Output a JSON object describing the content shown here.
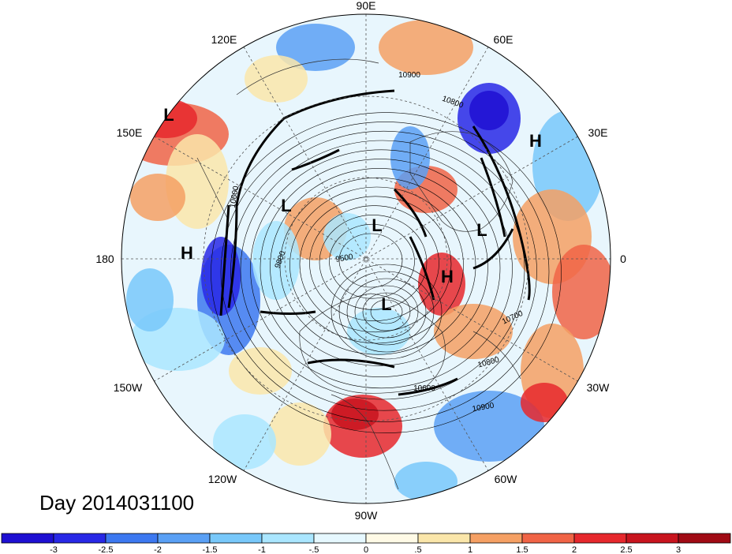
{
  "map": {
    "day_label": "Day 2014031100",
    "longitude_labels": [
      "90E",
      "60E",
      "30E",
      "0",
      "30W",
      "60W",
      "90W",
      "120W",
      "150W",
      "180",
      "150E",
      "120E"
    ],
    "pressure_centers": [
      "L",
      "H",
      "L",
      "L",
      "L",
      "L",
      "H",
      "H"
    ],
    "contour_labels": [
      "10900",
      "10800",
      "10700",
      "10800",
      "10600",
      "10900",
      "9800",
      "9500",
      "10600"
    ]
  },
  "colorbar": {
    "ticks": [
      "-3",
      "-2.5",
      "-2",
      "-1.5",
      "-1",
      "-.5",
      "0",
      ".5",
      "1",
      "1.5",
      "2",
      "2.5",
      "3"
    ],
    "colors": [
      "#1e0fd2",
      "#2828e6",
      "#3c78f0",
      "#5aa0f5",
      "#78c8fa",
      "#aae6ff",
      "#e6f8ff",
      "#fffae6",
      "#fae6aa",
      "#f5a064",
      "#f06446",
      "#e6282d",
      "#c8141e",
      "#a00a14"
    ]
  }
}
